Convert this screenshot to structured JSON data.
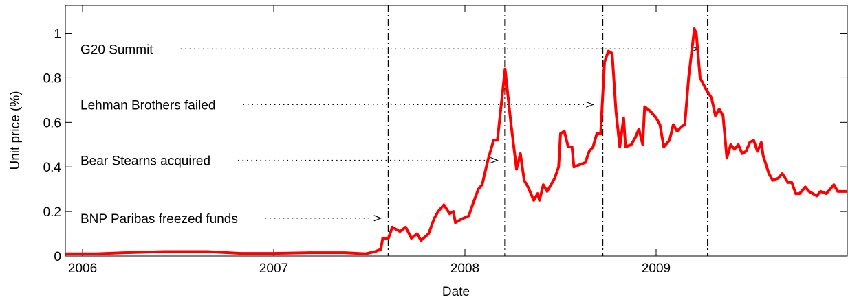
{
  "chart_data": {
    "type": "line",
    "xlabel": "Date",
    "ylabel": "Unit price (%)",
    "xlim": [
      2005.91,
      2010.0
    ],
    "ylim": [
      0,
      1.125
    ],
    "xticks": [
      2006,
      2007,
      2008,
      2009
    ],
    "yticks": [
      0,
      0.2,
      0.4,
      0.6,
      0.8,
      1
    ],
    "series": [
      {
        "color": "#ff0000",
        "x": [
          2005.91,
          2006.07,
          2006.22,
          2006.43,
          2006.65,
          2006.83,
          2007.0,
          2007.19,
          2007.37,
          2007.48,
          2007.53,
          2007.56,
          2007.57,
          2007.6,
          2007.62,
          2007.66,
          2007.69,
          2007.72,
          2007.75,
          2007.77,
          2007.81,
          2007.84,
          2007.86,
          2007.89,
          2007.92,
          2007.94,
          2007.95,
          2007.98,
          2008.02,
          2008.04,
          2008.07,
          2008.09,
          2008.12,
          2008.15,
          2008.17,
          2008.21,
          2008.24,
          2008.27,
          2008.29,
          2008.31,
          2008.33,
          2008.36,
          2008.38,
          2008.39,
          2008.41,
          2008.43,
          2008.47,
          2008.49,
          2008.5,
          2008.52,
          2008.54,
          2008.56,
          2008.57,
          2008.6,
          2008.63,
          2008.65,
          2008.67,
          2008.69,
          2008.71,
          2008.73,
          2008.75,
          2008.77,
          2008.79,
          2008.81,
          2008.83,
          2008.84,
          2008.87,
          2008.89,
          2008.91,
          2008.93,
          2008.94,
          2008.97,
          2009.0,
          2009.02,
          2009.04,
          2009.07,
          2009.09,
          2009.11,
          2009.13,
          2009.15,
          2009.17,
          2009.2,
          2009.21,
          2009.23,
          2009.26,
          2009.29,
          2009.31,
          2009.33,
          2009.35,
          2009.37,
          2009.39,
          2009.41,
          2009.43,
          2009.45,
          2009.47,
          2009.49,
          2009.51,
          2009.53,
          2009.55,
          2009.56,
          2009.59,
          2009.61,
          2009.64,
          2009.66,
          2009.69,
          2009.71,
          2009.73,
          2009.75,
          2009.78,
          2009.8,
          2009.82,
          2009.84,
          2009.86,
          2009.89,
          2009.92,
          2009.93,
          2009.95,
          2009.98,
          2010.0
        ],
        "values": [
          0.01,
          0.01,
          0.015,
          0.02,
          0.02,
          0.012,
          0.012,
          0.015,
          0.015,
          0.01,
          0.02,
          0.03,
          0.08,
          0.08,
          0.13,
          0.11,
          0.13,
          0.08,
          0.1,
          0.07,
          0.1,
          0.17,
          0.2,
          0.23,
          0.19,
          0.2,
          0.15,
          0.165,
          0.18,
          0.23,
          0.3,
          0.32,
          0.43,
          0.52,
          0.52,
          0.84,
          0.6,
          0.39,
          0.46,
          0.34,
          0.31,
          0.25,
          0.28,
          0.25,
          0.32,
          0.29,
          0.35,
          0.4,
          0.55,
          0.56,
          0.49,
          0.49,
          0.4,
          0.41,
          0.42,
          0.47,
          0.49,
          0.55,
          0.55,
          0.87,
          0.92,
          0.91,
          0.65,
          0.49,
          0.62,
          0.49,
          0.5,
          0.53,
          0.57,
          0.5,
          0.67,
          0.65,
          0.62,
          0.59,
          0.49,
          0.52,
          0.59,
          0.56,
          0.58,
          0.59,
          0.8,
          1.02,
          1.0,
          0.8,
          0.75,
          0.71,
          0.63,
          0.66,
          0.63,
          0.44,
          0.5,
          0.48,
          0.5,
          0.46,
          0.47,
          0.51,
          0.52,
          0.47,
          0.51,
          0.45,
          0.37,
          0.34,
          0.35,
          0.37,
          0.33,
          0.33,
          0.28,
          0.28,
          0.31,
          0.29,
          0.28,
          0.27,
          0.29,
          0.28,
          0.31,
          0.32,
          0.29,
          0.29,
          0.29
        ]
      }
    ],
    "event_lines": [
      2007.6,
      2008.21,
      2008.72,
      2009.27
    ],
    "annotations": [
      {
        "text": "G20 Summit",
        "x": 2009.22,
        "y": 0.93
      },
      {
        "text": "Lehman Brothers failed",
        "x": 2008.67,
        "y": 0.68
      },
      {
        "text": "Bear Stearns acquired",
        "x": 2008.17,
        "y": 0.43
      },
      {
        "text": "BNP Paribas freezed funds",
        "x": 2007.56,
        "y": 0.17
      }
    ]
  }
}
